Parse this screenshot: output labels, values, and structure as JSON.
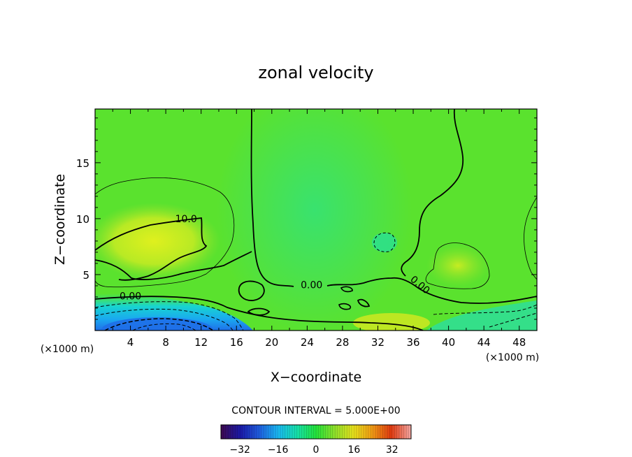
{
  "chart_data": {
    "type": "heatmap",
    "title": "zonal velocity",
    "xlabel": "X−coordinate",
    "ylabel": "Z−coordinate",
    "x_unit_left": "(×1000 m)",
    "x_unit_right": "(×1000 m)",
    "xlim": [
      0,
      50
    ],
    "ylim": [
      0,
      19.8
    ],
    "xticks": [
      4,
      8,
      12,
      16,
      20,
      24,
      28,
      32,
      36,
      40,
      44,
      48
    ],
    "yticks": [
      5,
      10,
      15
    ],
    "contour_interval_text": "CONTOUR INTERVAL = 5.000E+00",
    "contour_labels": [
      {
        "text": "10.0",
        "x": 10.3,
        "y": 10.0
      },
      {
        "text": "0.00",
        "x": 4.0,
        "y": 3.1
      },
      {
        "text": "0.00",
        "x": 24.5,
        "y": 4.1
      },
      {
        "text": "0.00",
        "x": 36.8,
        "y": 4.1
      }
    ],
    "colorbar": {
      "range": [
        -40,
        40
      ],
      "ticks": [
        -32,
        -16,
        0,
        16,
        32
      ],
      "tick_labels": [
        "−32",
        "−16",
        "0",
        "16",
        "32"
      ],
      "colors": [
        "#3b0a55",
        "#1a1aa8",
        "#1f5fe0",
        "#19b8f0",
        "#16e0a8",
        "#22e23a",
        "#8ee02a",
        "#e6e01c",
        "#f09a14",
        "#e03a10",
        "#f2a09a"
      ]
    },
    "field_summary": "strong negative flow (about -20) near the bottom for x < 16, mostly 0 to +10 elsewhere, positive core about +10 near x = 4-12, z = 5-10"
  }
}
